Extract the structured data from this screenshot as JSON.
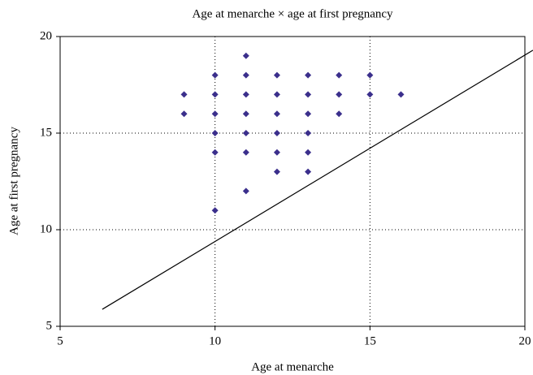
{
  "chart_data": {
    "type": "scatter",
    "title": "Age at menarche × age at first pregnancy",
    "x_label": "Age at menarche",
    "y_label": "Age at first pregnancy",
    "xlim": [
      5,
      20
    ],
    "xticks": [
      5,
      10,
      15,
      20
    ],
    "ylim": [
      5,
      20
    ],
    "yticks": [
      5,
      10,
      15,
      20
    ],
    "grid": true,
    "series": [
      {
        "color": "#3b2f8c",
        "x": [
          9,
          9,
          10,
          10,
          10,
          10,
          10,
          10,
          11,
          11,
          11,
          11,
          11,
          11,
          11,
          12,
          12,
          12,
          12,
          12,
          12,
          13,
          13,
          13,
          13,
          13,
          13,
          14,
          14,
          14,
          15,
          15,
          16
        ],
        "values": [
          17,
          16,
          18,
          17,
          16,
          15,
          14,
          11,
          19,
          18,
          17,
          16,
          15,
          14,
          12,
          18,
          17,
          16,
          15,
          14,
          13,
          18,
          17,
          16,
          15,
          14,
          13,
          18,
          17,
          16,
          18,
          17,
          17
        ]
      }
    ],
    "line": {
      "x": [
        6.36,
        20.26
      ],
      "y": [
        5.88,
        19.29
      ]
    }
  }
}
